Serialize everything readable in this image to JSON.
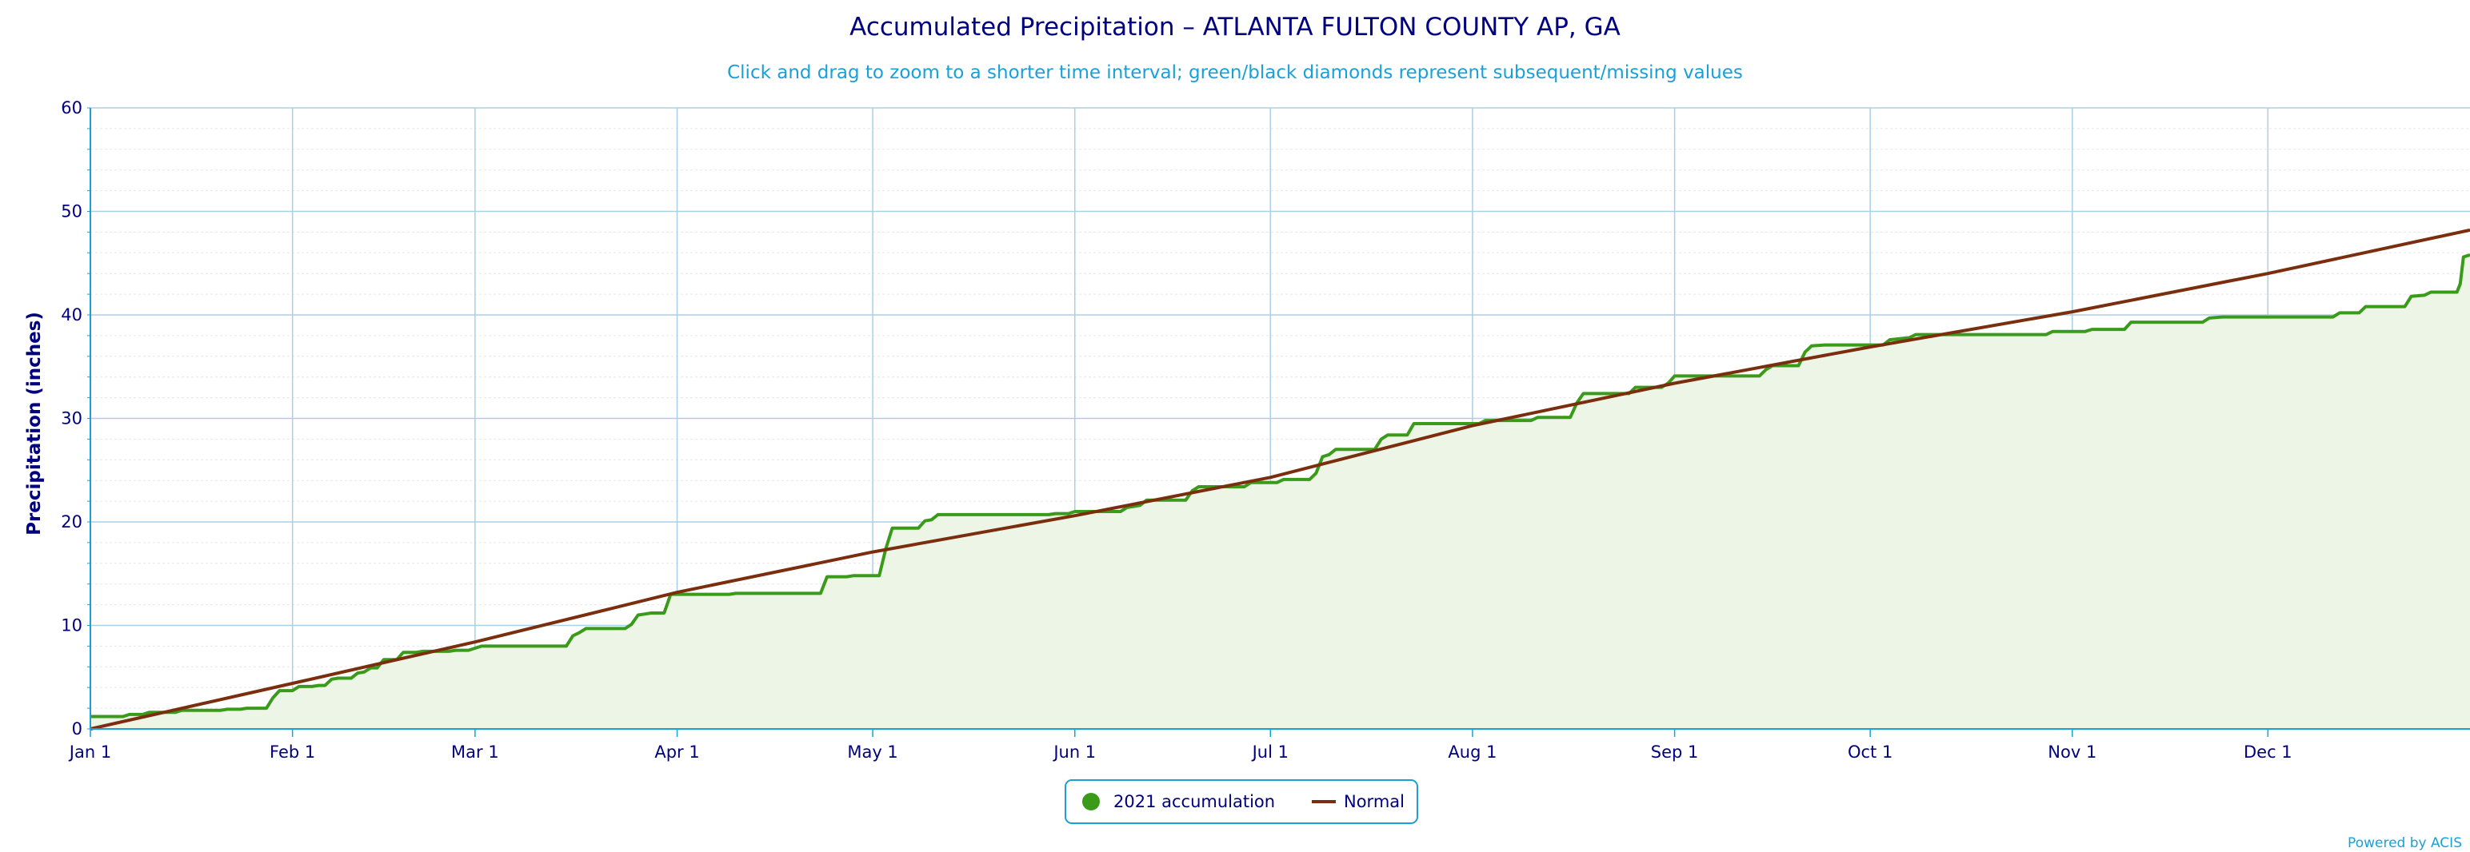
{
  "chart_data": {
    "type": "line",
    "title": "Accumulated Precipitation – ATLANTA FULTON COUNTY AP, GA",
    "subtitle": "Click and drag to zoom to a shorter time interval; green/black diamonds represent subsequent/missing values",
    "ylabel": "Precipitation (inches)",
    "xlabel": "",
    "x_axis": "day of year",
    "xlim": [
      0,
      365
    ],
    "ylim": [
      0,
      60
    ],
    "yticks": [
      0,
      10,
      20,
      30,
      40,
      50,
      60
    ],
    "xticks": [
      {
        "day": 0,
        "label": "Jan 1"
      },
      {
        "day": 31,
        "label": "Feb 1"
      },
      {
        "day": 59,
        "label": "Mar 1"
      },
      {
        "day": 90,
        "label": "Apr 1"
      },
      {
        "day": 120,
        "label": "May 1"
      },
      {
        "day": 151,
        "label": "Jun 1"
      },
      {
        "day": 181,
        "label": "Jul 1"
      },
      {
        "day": 212,
        "label": "Aug 1"
      },
      {
        "day": 243,
        "label": "Sep 1"
      },
      {
        "day": 273,
        "label": "Oct 1"
      },
      {
        "day": 304,
        "label": "Nov 1"
      },
      {
        "day": 334,
        "label": "Dec 1"
      }
    ],
    "grid": true,
    "legend_position": "bottom-center",
    "series": [
      {
        "name": "2021 accumulation",
        "style": "step-area",
        "color": "#3a9a1a",
        "fill": "#ecf5e6",
        "points": [
          [
            0,
            1.2
          ],
          [
            5,
            1.2
          ],
          [
            6,
            1.4
          ],
          [
            8,
            1.4
          ],
          [
            9,
            1.6
          ],
          [
            13,
            1.6
          ],
          [
            14,
            1.8
          ],
          [
            20,
            1.8
          ],
          [
            21,
            1.9
          ],
          [
            23,
            1.9
          ],
          [
            24,
            2.0
          ],
          [
            27,
            2.0
          ],
          [
            28,
            3.0
          ],
          [
            29,
            3.7
          ],
          [
            31,
            3.7
          ],
          [
            32,
            4.1
          ],
          [
            34,
            4.1
          ],
          [
            35,
            4.2
          ],
          [
            36,
            4.2
          ],
          [
            37,
            4.8
          ],
          [
            38,
            4.9
          ],
          [
            40,
            4.9
          ],
          [
            41,
            5.4
          ],
          [
            42,
            5.5
          ],
          [
            43,
            5.9
          ],
          [
            44,
            5.9
          ],
          [
            45,
            6.7
          ],
          [
            47,
            6.7
          ],
          [
            48,
            7.4
          ],
          [
            50,
            7.4
          ],
          [
            51,
            7.5
          ],
          [
            55,
            7.5
          ],
          [
            56,
            7.6
          ],
          [
            58,
            7.6
          ],
          [
            59,
            7.8
          ],
          [
            60,
            8.0
          ],
          [
            66,
            8.0
          ],
          [
            67,
            8.0
          ],
          [
            73,
            8.0
          ],
          [
            74,
            9.0
          ],
          [
            75,
            9.3
          ],
          [
            76,
            9.7
          ],
          [
            82,
            9.7
          ],
          [
            83,
            10.1
          ],
          [
            84,
            11.0
          ],
          [
            85,
            11.1
          ],
          [
            86,
            11.2
          ],
          [
            88,
            11.2
          ],
          [
            89,
            13.0
          ],
          [
            91,
            13.0
          ],
          [
            98,
            13.0
          ],
          [
            99,
            13.1
          ],
          [
            112,
            13.1
          ],
          [
            113,
            14.7
          ],
          [
            116,
            14.7
          ],
          [
            117,
            14.8
          ],
          [
            121,
            14.8
          ],
          [
            122,
            17.4
          ],
          [
            123,
            19.4
          ],
          [
            127,
            19.4
          ],
          [
            128,
            20.1
          ],
          [
            129,
            20.2
          ],
          [
            130,
            20.7
          ],
          [
            134,
            20.7
          ],
          [
            147,
            20.7
          ],
          [
            148,
            20.8
          ],
          [
            150,
            20.8
          ],
          [
            151,
            21.0
          ],
          [
            158,
            21.0
          ],
          [
            159,
            21.4
          ],
          [
            160,
            21.5
          ],
          [
            161,
            21.6
          ],
          [
            162,
            22.1
          ],
          [
            168,
            22.1
          ],
          [
            169,
            23.0
          ],
          [
            170,
            23.4
          ],
          [
            177,
            23.4
          ],
          [
            178,
            23.8
          ],
          [
            182,
            23.8
          ],
          [
            183,
            24.1
          ],
          [
            187,
            24.1
          ],
          [
            188,
            24.7
          ],
          [
            189,
            26.3
          ],
          [
            190,
            26.5
          ],
          [
            191,
            27.0
          ],
          [
            197,
            27.0
          ],
          [
            198,
            28.0
          ],
          [
            199,
            28.4
          ],
          [
            202,
            28.4
          ],
          [
            203,
            29.5
          ],
          [
            213,
            29.5
          ],
          [
            214,
            29.8
          ],
          [
            221,
            29.8
          ],
          [
            222,
            30.1
          ],
          [
            227,
            30.1
          ],
          [
            228,
            31.5
          ],
          [
            229,
            32.4
          ],
          [
            236,
            32.4
          ],
          [
            237,
            33.0
          ],
          [
            241,
            33.0
          ],
          [
            242,
            33.4
          ],
          [
            243,
            34.1
          ],
          [
            256,
            34.1
          ],
          [
            257,
            34.7
          ],
          [
            258,
            35.1
          ],
          [
            262,
            35.1
          ],
          [
            263,
            36.4
          ],
          [
            264,
            37.0
          ],
          [
            266,
            37.1
          ],
          [
            275,
            37.1
          ],
          [
            276,
            37.6
          ],
          [
            279,
            37.8
          ],
          [
            280,
            38.1
          ],
          [
            285,
            38.1
          ],
          [
            300,
            38.1
          ],
          [
            301,
            38.4
          ],
          [
            306,
            38.4
          ],
          [
            307,
            38.6
          ],
          [
            312,
            38.6
          ],
          [
            313,
            39.3
          ],
          [
            324,
            39.3
          ],
          [
            325,
            39.7
          ],
          [
            327,
            39.8
          ],
          [
            344,
            39.8
          ],
          [
            345,
            40.2
          ],
          [
            348,
            40.2
          ],
          [
            349,
            40.8
          ],
          [
            352,
            40.8
          ],
          [
            355,
            40.8
          ],
          [
            356,
            41.8
          ],
          [
            358,
            41.9
          ],
          [
            359,
            42.2
          ],
          [
            363,
            42.2
          ],
          [
            363.5,
            43.0
          ],
          [
            364,
            45.6
          ],
          [
            365,
            45.8
          ]
        ]
      },
      {
        "name": "Normal",
        "style": "line",
        "color": "#7a2e0e",
        "points": [
          [
            0,
            0.0
          ],
          [
            31,
            4.4
          ],
          [
            59,
            8.4
          ],
          [
            90,
            13.2
          ],
          [
            120,
            17.1
          ],
          [
            151,
            20.6
          ],
          [
            181,
            24.3
          ],
          [
            212,
            29.3
          ],
          [
            243,
            33.4
          ],
          [
            273,
            36.9
          ],
          [
            304,
            40.3
          ],
          [
            334,
            44.0
          ],
          [
            365,
            48.2
          ]
        ]
      }
    ]
  },
  "legend": {
    "items": [
      "2021 accumulation",
      "Normal"
    ]
  },
  "credits": "Powered by ACIS"
}
